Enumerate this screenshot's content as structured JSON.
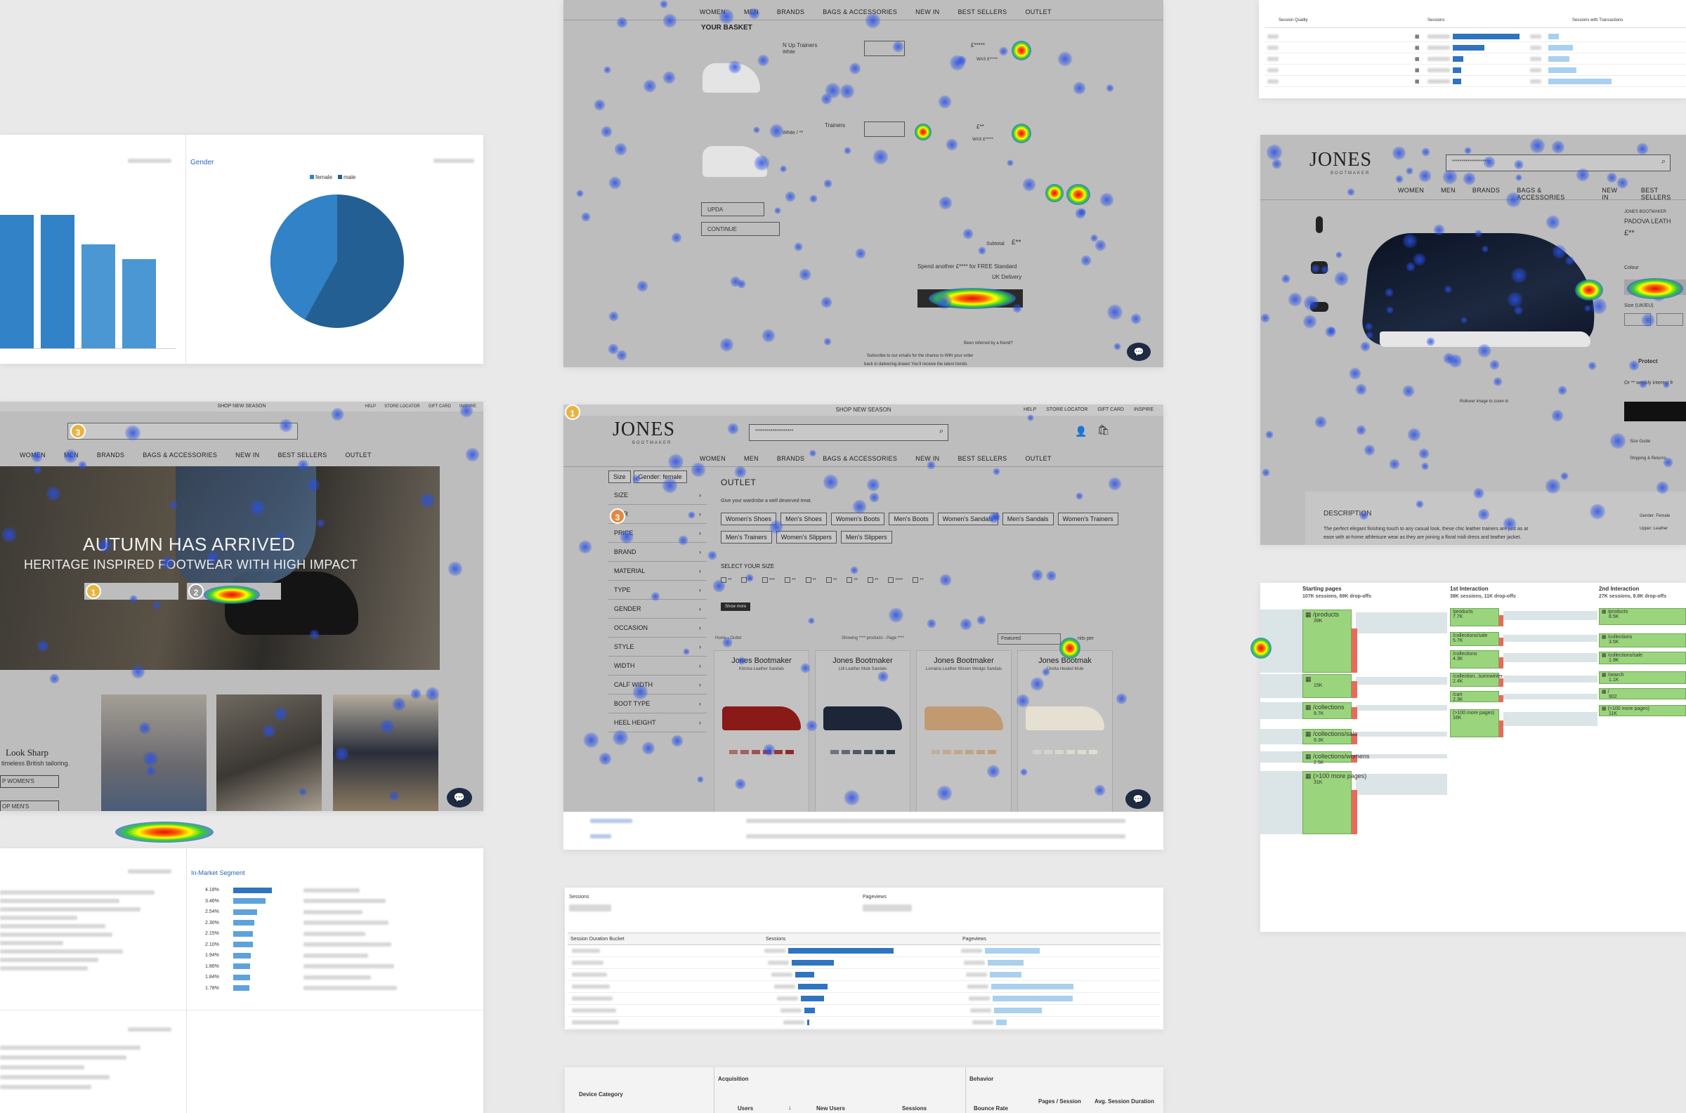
{
  "gender_panel": {
    "title": "Gender",
    "legend": [
      "female",
      "male"
    ],
    "colors": {
      "female": "#3182c6",
      "male": "#245f93"
    },
    "pie_split": {
      "female": 0.42,
      "male": 0.58
    },
    "bar_levels": [
      1.0,
      1.0,
      0.78,
      0.67
    ]
  },
  "hero_page": {
    "topbar": "SHOP NEW SEASON",
    "toplinks": [
      "HELP",
      "STORE LOCATOR",
      "GIFT CARD",
      "INSPIRE"
    ],
    "nav": [
      "WOMEN",
      "MEN",
      "BRANDS",
      "BAGS & ACCESSORIES",
      "NEW IN",
      "BEST SELLERS",
      "OUTLET"
    ],
    "headline": "AUTUMN HAS ARRIVED",
    "subheadline": "HERITAGE INSPIRED FOOTWEAR WITH HIGH IMPACT",
    "look_title": "Look Sharp",
    "look_sub": "timeless British tailoring.",
    "btn_women": "P WOMEN'S",
    "btn_men": "OP MEN'S",
    "markers": [
      "3",
      "1",
      "2"
    ]
  },
  "basket_page": {
    "nav": [
      "WOMEN",
      "MEN",
      "BRANDS",
      "BAGS & ACCESSORIES",
      "NEW IN",
      "BEST SELLERS",
      "OUTLET"
    ],
    "title": "YOUR BASKET",
    "item1_name": "N Up Trainers",
    "item1_sub": "White",
    "item1_price": "£*****",
    "item1_was": "WAS £*****",
    "item2_name": "Trainers",
    "item2_sub": "White / **",
    "item2_price": "£**",
    "item2_was": "WAS £*****",
    "update": "UPDA",
    "continue": "CONTINUE",
    "subtotal_label": "Subtotal",
    "subtotal_value": "£**",
    "spend_line1": "Spend another £**** for FREE Standard",
    "spend_line2": "UK Delivery",
    "referred": "Been referred by a friend?",
    "subscribe1": "Subscribe to our emails for the chance to WIN your order",
    "subscribe2": "back in dalivering draws! You'll receive the latest trends"
  },
  "outlet_page": {
    "topbar": "SHOP NEW SEASON",
    "toplinks": [
      "HELP",
      "STORE LOCATOR",
      "GIFT CARD",
      "INSPIRE"
    ],
    "logo": "JONES",
    "logo_sub": "BOOTMAKER",
    "search_value": "********************",
    "nav": [
      "WOMEN",
      "MEN",
      "BRANDS",
      "BAGS & ACCESSORIES",
      "NEW IN",
      "BEST SELLERS",
      "OUTLET"
    ],
    "active_filters": [
      "Size",
      "Gender: female"
    ],
    "facets": [
      "SIZE",
      "OUR",
      "PRICE",
      "BRAND",
      "MATERIAL",
      "TYPE",
      "GENDER",
      "OCCASION",
      "STYLE",
      "WIDTH",
      "CALF WIDTH",
      "BOOT TYPE",
      "HEEL HEIGHT"
    ],
    "heading": "OUTLET",
    "subheading": "Give your wardrobe a well deserved treat.",
    "categories_row1": [
      "Women's Shoes",
      "Men's Shoes",
      "Women's Boots",
      "Men's Boots",
      "Women's Sandals",
      "Men's Sandals",
      "Women's Trainers"
    ],
    "categories_row2": [
      "Men's Trainers",
      "Women's Slippers",
      "Men's Slippers"
    ],
    "size_label": "SELECT YOUR SIZE",
    "sizes": [
      "**",
      "**",
      "***",
      "**",
      "**",
      "**",
      "**",
      "**",
      "****",
      "**"
    ],
    "show_more": "Show more",
    "breadcrumb_home": "Home",
    "breadcrumb_outlet": "Outlet",
    "showing": "Showing **** products - Page ****",
    "sort": "Featured",
    "per_page": "nits per",
    "products": [
      {
        "brand": "Jones Bootmaker",
        "name": "Khrima Leather Sandals",
        "price": "£****"
      },
      {
        "brand": "Jones Bootmaker",
        "name": "Lilli Leather Mule Sandals",
        "price": "£****"
      },
      {
        "brand": "Jones Bootmaker",
        "name": "Lorraina Leather Woven Wedge Sandals",
        "price": "£****"
      },
      {
        "brand": "Jones Bootmak",
        "name": "Ciretta Heeled Mule",
        "price": "£****"
      }
    ],
    "marker_corner": "1",
    "marker_facet": "3"
  },
  "session_quality": {
    "col1": "Session Quality",
    "col2": "Sessions",
    "col3": "Sessions with Transactions",
    "bars": [
      0.95,
      0.45,
      0.15,
      0.12,
      0.12
    ],
    "bars2": [
      0.15,
      0.35,
      0.3,
      0.4,
      0.9
    ]
  },
  "product_page": {
    "logo": "JONES",
    "logo_sub": "BOOTMAKER",
    "search_value": "********************",
    "nav": [
      "WOMEN",
      "MEN",
      "BRANDS",
      "BAGS & ACCESSORIES",
      "NEW IN",
      "BEST SELLERS"
    ],
    "brand_line": "JONES BOOTMAKER",
    "product_name": "PADOVA LEATH",
    "price": "£**",
    "colour": "Colour",
    "size_label": "Size (UK/EU)",
    "protect": "Protect",
    "weekly": "Or ** weekly interest fr",
    "size_guide": "Size Guide",
    "shipping": "Shipping & Returns",
    "rollover": "Rollover image to zoom in",
    "desc_title": "DESCRIPTION",
    "desc_text1": "The perfect elegant finishing touch to any casual look, these chic leather trainers are just as at",
    "desc_text2": "ease with at-home athleisure wear as they are joining a floral midi dress and leather jacket.",
    "gender": "Gender: Female",
    "upper": "Upper: Leather"
  },
  "market_panel": {
    "title": "In-Market Segment",
    "rows": [
      {
        "pct": "4.18%",
        "level": 1.0
      },
      {
        "pct": "3.46%",
        "level": 0.83
      },
      {
        "pct": "2.54%",
        "level": 0.61
      },
      {
        "pct": "2.30%",
        "level": 0.55
      },
      {
        "pct": "2.15%",
        "level": 0.51
      },
      {
        "pct": "2.10%",
        "level": 0.5
      },
      {
        "pct": "1.94%",
        "level": 0.46
      },
      {
        "pct": "1.86%",
        "level": 0.44
      },
      {
        "pct": "1.84%",
        "level": 0.44
      },
      {
        "pct": "1.78%",
        "level": 0.42
      }
    ]
  },
  "duration_panel": {
    "sessions_label": "Sessions",
    "pageviews_label": "Pageviews",
    "col1": "Session Duration Bucket",
    "col2": "Sessions",
    "col3": "Pageviews",
    "sessions_bars": [
      1.0,
      0.4,
      0.18,
      0.28,
      0.22,
      0.1,
      0.02
    ],
    "pageview_bars": [
      0.52,
      0.34,
      0.3,
      0.78,
      0.76,
      0.45,
      0.1
    ]
  },
  "flow_panel": {
    "col1_title": "Starting pages",
    "col1_sub": "107K sessions, 69K drop-offs",
    "col2_title": "1st Interaction",
    "col2_sub": "38K sessions, 11K drop-offs",
    "col3_title": "2nd Interaction",
    "col3_sub": "27K sessions, 8.8K drop-offs",
    "col1_nodes": [
      {
        "label": "/products",
        "value": "39K"
      },
      {
        "label": "",
        "value": "15K"
      },
      {
        "label": "/collections",
        "value": "9.7K"
      },
      {
        "label": "/collections/sale",
        "value": "9.3K"
      },
      {
        "label": "/collections/womens",
        "value": "2.5K"
      },
      {
        "label": "(>100 more pages)",
        "value": "31K"
      }
    ],
    "col2_nodes": [
      {
        "label": "/products",
        "value": "7.7K"
      },
      {
        "label": "/collections/sale",
        "value": "5.7K"
      },
      {
        "label": "/collections",
        "value": "4.3K"
      },
      {
        "label": "/collection...tumnwinter",
        "value": "2.4K"
      },
      {
        "label": "/cart",
        "value": "2.3K"
      },
      {
        "label": "(>100 more pages)",
        "value": "16K"
      }
    ],
    "col3_nodes": [
      {
        "label": "/products",
        "value": "8.5K"
      },
      {
        "label": "/collections",
        "value": "3.5K"
      },
      {
        "label": "/collections/sale",
        "value": "1.9K"
      },
      {
        "label": "/search",
        "value": "1.1K"
      },
      {
        "label": "/",
        "value": "902"
      },
      {
        "label": "(>100 more pages)",
        "value": "11K"
      }
    ]
  },
  "device_panel": {
    "col_device": "Device Category",
    "acquisition": "Acquisition",
    "behavior": "Behavior",
    "users": "Users",
    "new_users": "New Users",
    "sessions": "Sessions",
    "bounce": "Bounce Rate",
    "pages_session": "Pages / Session",
    "avg_duration": "Avg. Session Duration"
  }
}
